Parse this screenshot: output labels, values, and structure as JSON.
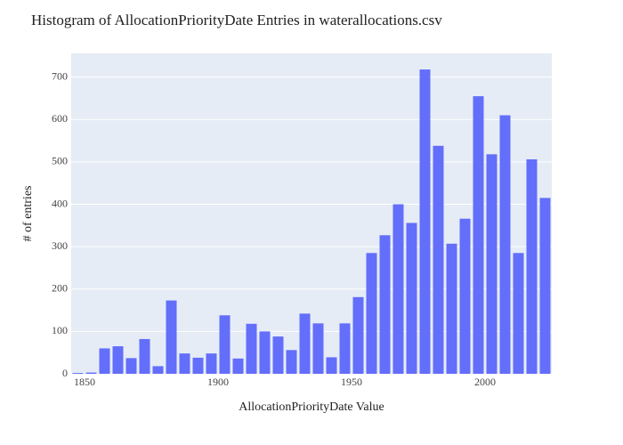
{
  "chart_data": {
    "type": "histogram",
    "title": "Histogram of AllocationPriorityDate Entries in waterallocations.csv",
    "x_label": "AllocationPriorityDate Value",
    "y_label": "# of entries",
    "bins": [
      1845,
      1850,
      1855,
      1860,
      1865,
      1870,
      1875,
      1880,
      1885,
      1890,
      1895,
      1900,
      1905,
      1910,
      1915,
      1920,
      1925,
      1930,
      1935,
      1940,
      1945,
      1950,
      1955,
      1960,
      1965,
      1970,
      1975,
      1980,
      1985,
      1990,
      1995,
      2000,
      2005,
      2010,
      2015,
      2020,
      2025
    ],
    "values": [
      2,
      3,
      60,
      65,
      37,
      82,
      18,
      173,
      48,
      38,
      48,
      138,
      36,
      118,
      100,
      88,
      56,
      142,
      119,
      39,
      119,
      181,
      285,
      327,
      400,
      356,
      718,
      538,
      307,
      366,
      655,
      518,
      610,
      285,
      506,
      415
    ],
    "color": "#636efa",
    "xlim": [
      1845,
      2025
    ],
    "xticks": [
      1850,
      1900,
      1950,
      2000
    ],
    "ylim": [
      0,
      756
    ],
    "yticks": [
      0,
      100,
      200,
      300,
      400,
      500,
      600,
      700
    ],
    "grid": true
  }
}
